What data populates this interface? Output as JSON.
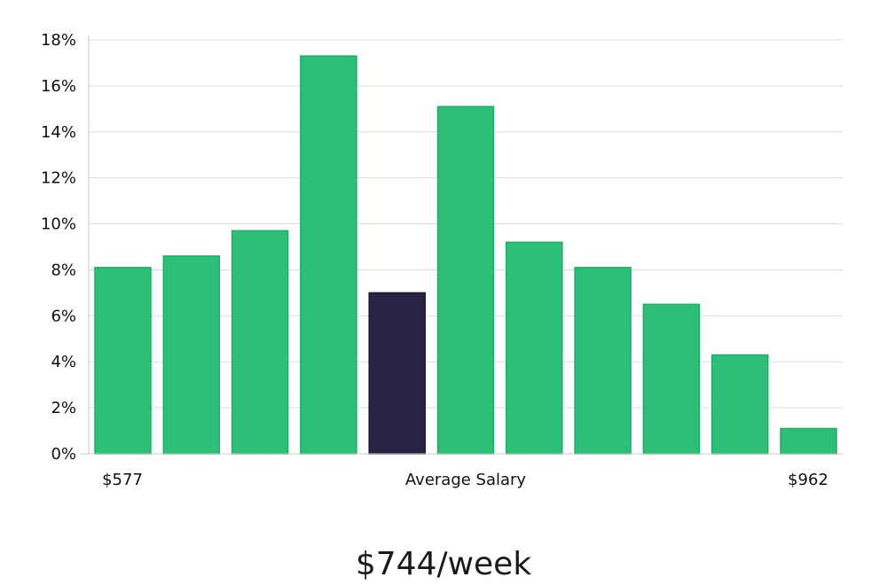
{
  "chart_data": {
    "type": "bar",
    "categories": [
      "",
      "",
      "",
      "",
      "",
      "",
      "",
      "",
      "",
      "",
      ""
    ],
    "values": [
      8.1,
      8.6,
      9.7,
      17.3,
      7.0,
      15.1,
      9.2,
      8.1,
      6.5,
      4.3,
      1.1
    ],
    "highlight_index": 4,
    "ylim": [
      0,
      18
    ],
    "yticks": [
      0,
      2,
      4,
      6,
      8,
      10,
      12,
      14,
      16,
      18
    ],
    "ytick_labels": [
      "0%",
      "2%",
      "4%",
      "6%",
      "8%",
      "10%",
      "12%",
      "14%",
      "16%",
      "18%"
    ],
    "grid": true,
    "x_labels": {
      "left": "$577",
      "center": "Average Salary",
      "right": "$962"
    },
    "colors": {
      "bar": "#2bbf78",
      "bar_stroke": "#1fae69",
      "highlight": "#282445",
      "highlight_stroke": "#1a1733"
    }
  },
  "summary": {
    "salary_text": "$744/week"
  }
}
